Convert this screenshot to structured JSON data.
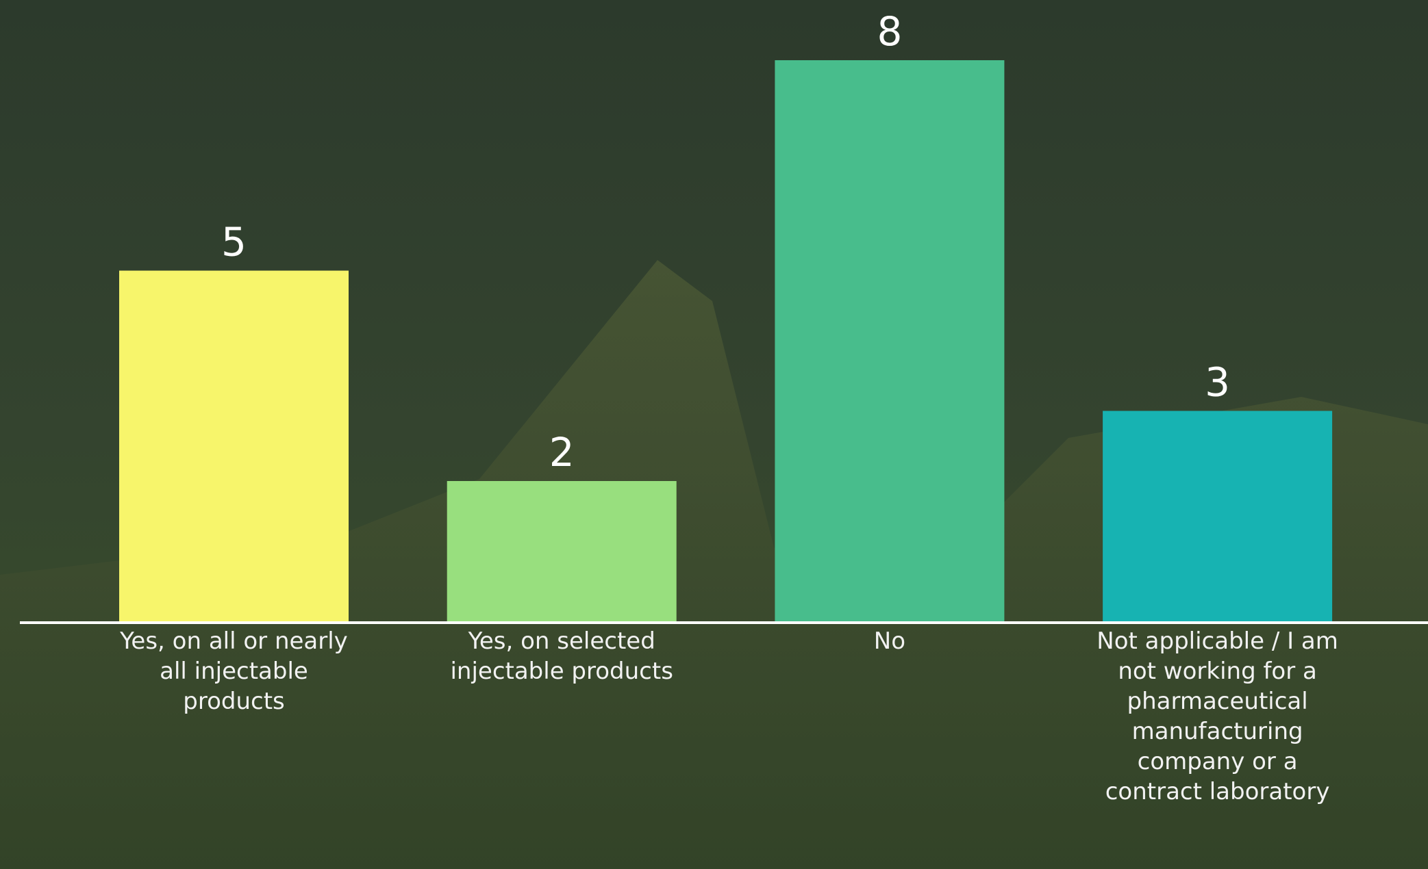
{
  "chart_data": {
    "type": "bar",
    "categories": [
      "Yes, on all or nearly all injectable products",
      "Yes, on selected injectable products",
      "No",
      "Not applicable / I am not working for a pharmaceutical manufacturing company or a contract laboratory"
    ],
    "values": [
      5,
      2,
      8,
      3
    ],
    "colors": [
      "#f7f56b",
      "#98df7e",
      "#48bd8c",
      "#17b3b2"
    ]
  }
}
